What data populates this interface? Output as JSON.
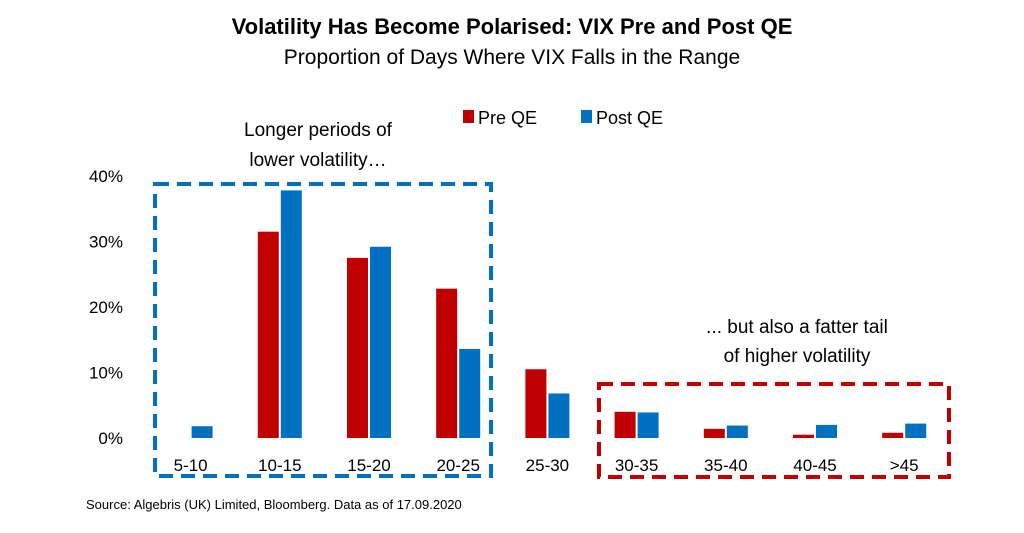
{
  "title": "Volatility Has Become Polarised: VIX Pre and Post QE",
  "subtitle": "Proportion of Days Where VIX Falls in the Range",
  "source": "Source: Algebris (UK) Limited, Bloomberg. Data as of 17.09.2020",
  "colors": {
    "pre": "#C00000",
    "post": "#0070C0"
  },
  "annotations": {
    "left_line1": "Longer periods of",
    "left_line2": "lower volatility…",
    "right_line1": "... but also a fatter tail",
    "right_line2": "of higher volatility"
  },
  "chart_data": {
    "type": "bar",
    "title": "Volatility Has Become Polarised: VIX Pre and Post QE",
    "subtitle": "Proportion of Days Where VIX Falls in the Range",
    "categories": [
      "5-10",
      "10-15",
      "15-20",
      "20-25",
      "25-30",
      "30-35",
      "35-40",
      "40-45",
      ">45"
    ],
    "series": [
      {
        "name": "Pre QE",
        "values": [
          0,
          31.5,
          27.5,
          22.8,
          10.5,
          4.0,
          1.4,
          0.5,
          0.8
        ]
      },
      {
        "name": "Post QE",
        "values": [
          1.8,
          37.8,
          29.2,
          13.6,
          6.8,
          3.9,
          1.9,
          2.0,
          2.2
        ]
      }
    ],
    "yticks": [
      "0%",
      "10%",
      "20%",
      "30%",
      "40%"
    ],
    "ylim": [
      0,
      40
    ],
    "grid": false,
    "legend": "top"
  }
}
